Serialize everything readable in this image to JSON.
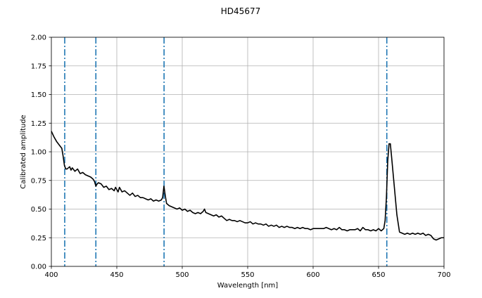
{
  "chart_data": {
    "type": "line",
    "title": "HD45677",
    "xlabel": "Wavelength [nm]",
    "ylabel": "Calibrated amplitude",
    "xlim": [
      400,
      700
    ],
    "ylim": [
      0,
      2
    ],
    "xticks": [
      400,
      450,
      500,
      550,
      600,
      650,
      700
    ],
    "xtick_labels": [
      "400",
      "450",
      "500",
      "550",
      "600",
      "650",
      "700"
    ],
    "yticks": [
      0,
      0.25,
      0.5,
      0.75,
      1.0,
      1.25,
      1.5,
      1.75,
      2.0
    ],
    "ytick_labels": [
      "0.00",
      "0.25",
      "0.50",
      "0.75",
      "1.00",
      "1.25",
      "1.50",
      "1.75",
      "2.00"
    ],
    "grid": true,
    "line_color": "#000000",
    "reference_line_color": "#1f77b4",
    "reference_lines_x": [
      410.2,
      434.0,
      486.1,
      656.3
    ],
    "series": [
      {
        "x": [
          400,
          402,
          404,
          406,
          408,
          409,
          410,
          411,
          412,
          413,
          414,
          415,
          416,
          418,
          420,
          422,
          424,
          426,
          428,
          430,
          432,
          433,
          434,
          435,
          436,
          438,
          440,
          442,
          444,
          446,
          448,
          449,
          450,
          451,
          452,
          454,
          456,
          458,
          460,
          462,
          464,
          466,
          468,
          470,
          472,
          474,
          476,
          478,
          480,
          482,
          484,
          485,
          486,
          487,
          488,
          490,
          492,
          494,
          496,
          498,
          500,
          502,
          504,
          506,
          508,
          510,
          512,
          514,
          516,
          517,
          518,
          520,
          522,
          524,
          526,
          528,
          530,
          532,
          534,
          536,
          538,
          540,
          542,
          544,
          546,
          548,
          550,
          552,
          554,
          556,
          558,
          560,
          562,
          564,
          566,
          568,
          570,
          572,
          574,
          576,
          578,
          580,
          582,
          584,
          586,
          588,
          590,
          592,
          594,
          596,
          598,
          600,
          602,
          604,
          606,
          608,
          610,
          612,
          614,
          616,
          618,
          620,
          622,
          624,
          626,
          628,
          630,
          632,
          634,
          636,
          638,
          640,
          642,
          644,
          646,
          648,
          650,
          652,
          653,
          654,
          655,
          656,
          657,
          658,
          659,
          660,
          662,
          664,
          666,
          668,
          670,
          672,
          674,
          676,
          678,
          680,
          682,
          684,
          686,
          688,
          690,
          692,
          694,
          696,
          698,
          700
        ],
        "y": [
          1.18,
          1.13,
          1.09,
          1.06,
          1.03,
          0.96,
          0.88,
          0.85,
          0.85,
          0.86,
          0.87,
          0.84,
          0.86,
          0.83,
          0.85,
          0.81,
          0.82,
          0.8,
          0.79,
          0.78,
          0.76,
          0.74,
          0.7,
          0.72,
          0.73,
          0.72,
          0.69,
          0.7,
          0.67,
          0.68,
          0.66,
          0.69,
          0.67,
          0.65,
          0.69,
          0.65,
          0.66,
          0.64,
          0.62,
          0.64,
          0.61,
          0.62,
          0.6,
          0.6,
          0.59,
          0.58,
          0.59,
          0.57,
          0.58,
          0.57,
          0.58,
          0.6,
          0.7,
          0.62,
          0.55,
          0.53,
          0.52,
          0.51,
          0.5,
          0.51,
          0.49,
          0.5,
          0.48,
          0.49,
          0.47,
          0.46,
          0.47,
          0.46,
          0.48,
          0.5,
          0.47,
          0.46,
          0.45,
          0.44,
          0.45,
          0.43,
          0.44,
          0.42,
          0.4,
          0.41,
          0.4,
          0.4,
          0.39,
          0.4,
          0.39,
          0.38,
          0.38,
          0.39,
          0.37,
          0.38,
          0.37,
          0.37,
          0.36,
          0.37,
          0.35,
          0.36,
          0.35,
          0.36,
          0.34,
          0.35,
          0.34,
          0.35,
          0.34,
          0.34,
          0.33,
          0.34,
          0.33,
          0.34,
          0.33,
          0.33,
          0.32,
          0.33,
          0.33,
          0.33,
          0.33,
          0.33,
          0.34,
          0.33,
          0.32,
          0.33,
          0.32,
          0.34,
          0.32,
          0.32,
          0.31,
          0.32,
          0.32,
          0.32,
          0.33,
          0.31,
          0.34,
          0.32,
          0.32,
          0.31,
          0.32,
          0.31,
          0.33,
          0.31,
          0.32,
          0.33,
          0.4,
          0.6,
          0.92,
          1.07,
          1.07,
          0.95,
          0.7,
          0.45,
          0.3,
          0.29,
          0.28,
          0.29,
          0.28,
          0.29,
          0.28,
          0.29,
          0.28,
          0.29,
          0.27,
          0.28,
          0.27,
          0.24,
          0.23,
          0.24,
          0.25,
          0.25
        ]
      }
    ]
  }
}
